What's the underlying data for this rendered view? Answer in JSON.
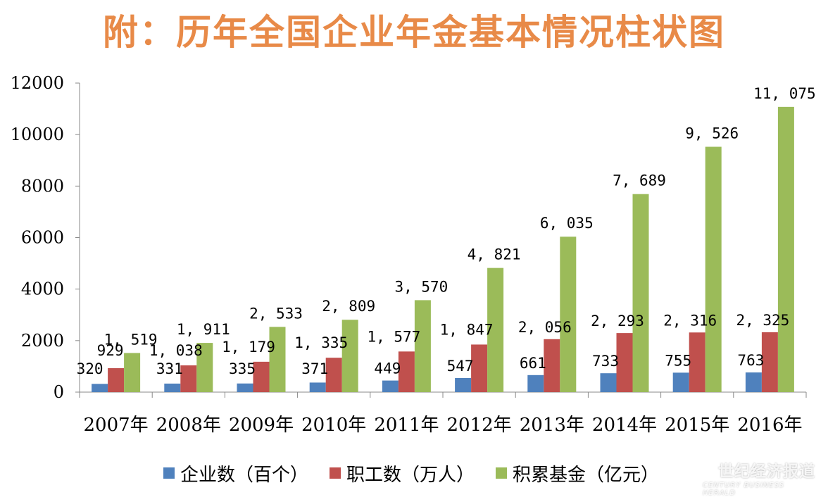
{
  "chart_data": {
    "type": "bar",
    "title": "附：历年全国企业年金基本情况柱状图",
    "categories": [
      "2007年",
      "2008年",
      "2009年",
      "2010年",
      "2011年",
      "2012年",
      "2013年",
      "2014年",
      "2015年",
      "2016年"
    ],
    "series": [
      {
        "name": "企业数（百个）",
        "color": "#4F81BD",
        "values": [
          320,
          331,
          335,
          371,
          449,
          547,
          661,
          733,
          755,
          763
        ],
        "labels": [
          "320",
          "331",
          "335",
          "371",
          "449",
          "547",
          "661",
          "733",
          "755",
          "763"
        ]
      },
      {
        "name": "职工数（万人）",
        "color": "#C0504D",
        "values": [
          929,
          1038,
          1179,
          1335,
          1577,
          1847,
          2056,
          2293,
          2316,
          2325
        ],
        "labels": [
          "929",
          "1, 038",
          "1, 179",
          "1, 335",
          "1, 577",
          "1, 847",
          "2, 056",
          "2, 293",
          "2, 316",
          "2, 325"
        ]
      },
      {
        "name": "积累基金（亿元）",
        "color": "#9BBB59",
        "values": [
          1519,
          1911,
          2533,
          2809,
          3570,
          4821,
          6035,
          7689,
          9526,
          11075
        ],
        "labels": [
          "1, 519",
          "1, 911",
          "2, 533",
          "2, 809",
          "3, 570",
          "4, 821",
          "6, 035",
          "7, 689",
          "9, 526",
          "11, 075"
        ]
      }
    ],
    "ylim": [
      0,
      12000
    ],
    "yticks": [
      "0",
      "2000",
      "4000",
      "6000",
      "8000",
      "10000",
      "12000"
    ],
    "grid": false,
    "legend_position": "bottom"
  },
  "watermark": {
    "main": "世纪经济报道",
    "sub": "CENTURY BUSINESS HERALD"
  }
}
